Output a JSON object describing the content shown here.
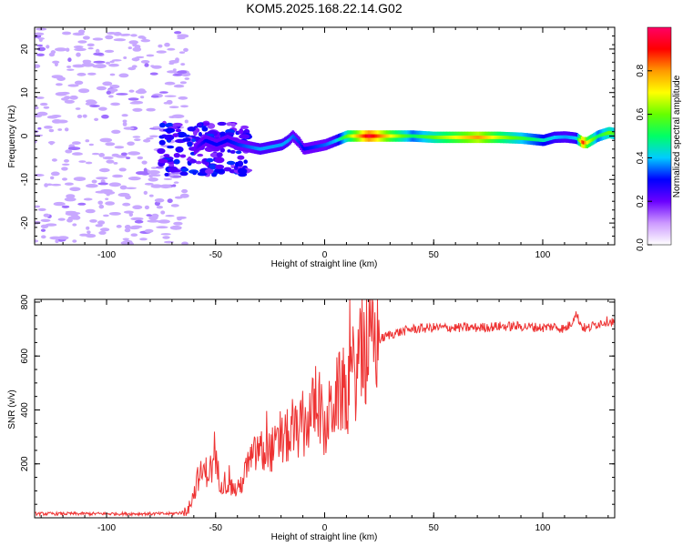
{
  "title": "KOM5.2025.168.22.14.G02",
  "chart_data": [
    {
      "type": "heatmap",
      "xlabel": "Height of straight line (km)",
      "ylabel": "Frequency (Hz)",
      "xlim": [
        -133,
        133
      ],
      "ylim": [
        -25,
        25
      ],
      "xticks": [
        -100,
        -50,
        0,
        50,
        100
      ],
      "yticks": [
        -20,
        -10,
        0,
        10,
        20
      ],
      "colorbar": {
        "label": "Normalized spectral amplitude",
        "range": [
          0,
          1
        ],
        "ticks": [
          0.0,
          0.2,
          0.4,
          0.6,
          0.8
        ],
        "tick_labels": [
          "0.0",
          "0.2",
          "0.4",
          "0.6",
          "0.8"
        ],
        "colors": [
          "#ffffff",
          "#cc99ff",
          "#6a00ff",
          "#0000ff",
          "#00ccff",
          "#00ff66",
          "#66ff00",
          "#ffff00",
          "#ff9900",
          "#ff0000",
          "#ff0066"
        ]
      },
      "ridge": {
        "x": [
          -133,
          -70,
          -60,
          -55,
          -50,
          -45,
          -40,
          -35,
          -30,
          -25,
          -20,
          -17,
          -15,
          -12,
          -10,
          -5,
          0,
          5,
          10,
          20,
          30,
          40,
          50,
          60,
          70,
          80,
          90,
          100,
          105,
          110,
          115,
          118,
          120,
          125,
          130,
          133
        ],
        "freq": [
          0,
          -6,
          -3,
          -1,
          -2,
          -1,
          -2,
          -2.5,
          -3,
          -2.5,
          -2,
          -1,
          0,
          -1.5,
          -3,
          -2.5,
          -2,
          -1,
          0,
          0,
          0,
          0,
          -0.3,
          -0.3,
          -0.3,
          -0.3,
          -0.5,
          -1,
          -0.3,
          -0.2,
          -0.5,
          -1.5,
          -1.5,
          0,
          0.8,
          0.5
        ],
        "amplitude": [
          0.05,
          0.12,
          0.2,
          0.3,
          0.3,
          0.3,
          0.32,
          0.35,
          0.38,
          0.38,
          0.38,
          0.38,
          0.35,
          0.32,
          0.3,
          0.32,
          0.35,
          0.4,
          0.6,
          0.95,
          0.7,
          0.5,
          0.6,
          0.7,
          0.8,
          0.65,
          0.55,
          0.45,
          0.4,
          0.38,
          0.4,
          0.9,
          0.7,
          0.5,
          0.6,
          0.55
        ]
      }
    },
    {
      "type": "line",
      "xlabel": "Height of straight line (km)",
      "ylabel": "SNR (v/v)",
      "xlim": [
        -133,
        133
      ],
      "ylim": [
        0,
        810
      ],
      "xticks": [
        -100,
        -50,
        0,
        50,
        100
      ],
      "yticks": [
        200,
        400,
        600,
        800
      ],
      "color": "#ee3333",
      "series": [
        {
          "x": [
            -133,
            -120,
            -100,
            -80,
            -70,
            -65,
            -62,
            -60,
            -58,
            -55,
            -52,
            -50,
            -48,
            -45,
            -42,
            -40,
            -37,
            -35,
            -32,
            -30,
            -28,
            -25,
            -22,
            -20,
            -17,
            -15,
            -12,
            -10,
            -8,
            -5,
            -3,
            -1,
            0,
            2,
            4,
            6,
            8,
            10,
            12,
            15,
            18,
            20,
            22,
            25,
            30,
            35,
            40,
            50,
            60,
            70,
            80,
            90,
            100,
            105,
            110,
            113,
            115,
            118,
            120,
            125,
            130,
            133
          ],
          "y": [
            15,
            15,
            15,
            15,
            15,
            20,
            40,
            90,
            150,
            170,
            180,
            200,
            140,
            130,
            110,
            100,
            150,
            200,
            230,
            260,
            230,
            250,
            260,
            280,
            300,
            300,
            330,
            320,
            360,
            400,
            450,
            350,
            300,
            380,
            430,
            450,
            480,
            440,
            520,
            560,
            600,
            620,
            650,
            660,
            680,
            690,
            700,
            705,
            705,
            705,
            710,
            710,
            705,
            710,
            700,
            720,
            760,
            710,
            700,
            720,
            730,
            725
          ]
        }
      ]
    }
  ]
}
